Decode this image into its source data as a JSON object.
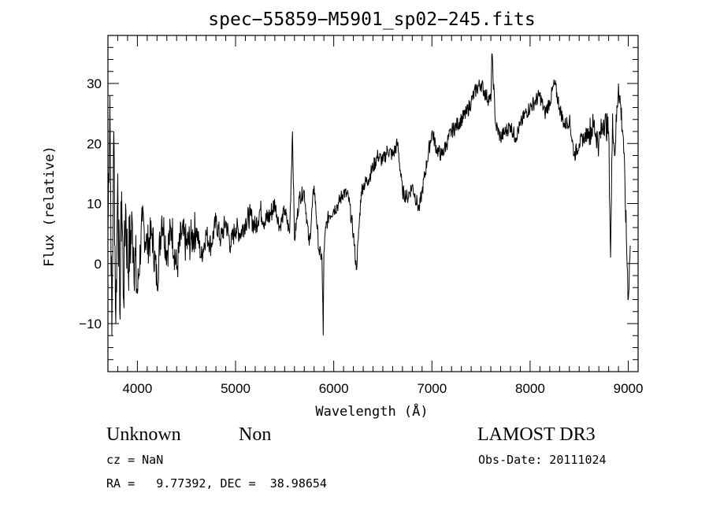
{
  "chart_data": {
    "type": "line",
    "title": "spec−55859−M5901_sp02−245.fits",
    "xlabel": "Wavelength (Å)",
    "ylabel": "Flux (relative)",
    "xlim": [
      3700,
      9100
    ],
    "ylim": [
      -18,
      38
    ],
    "x_ticks": [
      4000,
      5000,
      6000,
      7000,
      8000,
      9000
    ],
    "y_ticks": [
      -10,
      0,
      10,
      20,
      30
    ],
    "x_tick_labels": [
      "4000",
      "5000",
      "6000",
      "7000",
      "8000",
      "9000"
    ],
    "y_tick_labels": [
      "−10",
      "0",
      "10",
      "20",
      "30"
    ],
    "grid": false,
    "series": [
      {
        "x": [
          3700,
          3720,
          3740,
          3760,
          3780,
          3800,
          3820,
          3840,
          3860,
          3880,
          3900,
          3950,
          4000,
          4050,
          4100,
          4150,
          4200,
          4250,
          4300,
          4350,
          4400,
          4450,
          4500,
          4550,
          4600,
          4650,
          4700,
          4750,
          4800,
          4850,
          4900,
          4950,
          5000,
          5050,
          5100,
          5150,
          5200,
          5250,
          5300,
          5350,
          5400,
          5450,
          5500,
          5550,
          5580,
          5600,
          5650,
          5700,
          5750,
          5800,
          5850,
          5880,
          5893,
          5900,
          5920,
          5950,
          6000,
          6050,
          6100,
          6150,
          6200,
          6230,
          6250,
          6280,
          6300,
          6350,
          6400,
          6450,
          6500,
          6550,
          6600,
          6650,
          6700,
          6750,
          6800,
          6850,
          6870,
          6900,
          6950,
          7000,
          7050,
          7100,
          7150,
          7200,
          7250,
          7300,
          7350,
          7400,
          7450,
          7500,
          7550,
          7600,
          7610,
          7650,
          7700,
          7750,
          7800,
          7850,
          7900,
          7950,
          8000,
          8050,
          8100,
          8150,
          8200,
          8250,
          8300,
          8350,
          8400,
          8450,
          8500,
          8550,
          8600,
          8650,
          8700,
          8750,
          8800,
          8820,
          8840,
          8860,
          8900,
          8950,
          9000,
          9020
        ],
        "y": [
          5,
          28,
          -12,
          22,
          -10,
          15,
          -8,
          12,
          -6,
          10,
          0,
          6,
          -5,
          7,
          3,
          5,
          -3,
          8,
          2,
          6,
          -1,
          5,
          3,
          4,
          6,
          1,
          5,
          3,
          7,
          4,
          7,
          3,
          6,
          5,
          7,
          8,
          6,
          9,
          7,
          8,
          10,
          6,
          9,
          5,
          22,
          4,
          11,
          12,
          3,
          13,
          2,
          1,
          -12,
          2,
          6,
          8,
          9,
          10,
          12,
          11,
          5,
          -1,
          4,
          12,
          13,
          14,
          16,
          18,
          17,
          19,
          18,
          20,
          12,
          11,
          13,
          10,
          9,
          12,
          17,
          22,
          19,
          18,
          20,
          22,
          23,
          24,
          25,
          27,
          29,
          30,
          28,
          27,
          35,
          23,
          21,
          22,
          23,
          21,
          23,
          25,
          26,
          27,
          28,
          25,
          27,
          30,
          26,
          23,
          24,
          18,
          20,
          21,
          22,
          23,
          20,
          24,
          22,
          1,
          25,
          18,
          30,
          21,
          -6,
          3
        ]
      }
    ]
  },
  "footer": {
    "object_class": "Unknown",
    "subclass": "Non",
    "cz": "cz = NaN",
    "radec": "RA =   9.77392, DEC =  38.98654",
    "survey": "LAMOST DR3",
    "obs_date": "Obs-Date: 20111024"
  }
}
